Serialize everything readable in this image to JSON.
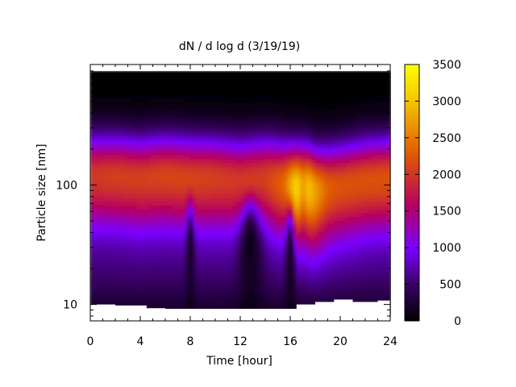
{
  "chart_data": {
    "type": "heatmap",
    "title": "dN / d log d (3/19/19)",
    "xlabel": "Time [hour]",
    "ylabel": "Particle size [nm]",
    "xlim": [
      0,
      24
    ],
    "x_ticks": [
      0,
      4,
      8,
      12,
      16,
      20,
      24
    ],
    "y_scale": "log",
    "ylim": [
      8,
      900
    ],
    "y_ticks": [
      10,
      100
    ],
    "colorbar": {
      "range": [
        0,
        3500
      ],
      "ticks": [
        0,
        500,
        1000,
        1500,
        2000,
        2500,
        3000,
        3500
      ],
      "colors": [
        "#000000",
        "#3a0066",
        "#7a00ff",
        "#b60060",
        "#e05a00",
        "#f5c000",
        "#ffff00"
      ]
    },
    "peak_diameter_nm": [
      [
        0,
        120
      ],
      [
        2,
        120
      ],
      [
        4,
        115
      ],
      [
        6,
        120
      ],
      [
        8,
        115
      ],
      [
        10,
        115
      ],
      [
        12,
        110
      ],
      [
        14,
        115
      ],
      [
        15.5,
        105
      ],
      [
        16.5,
        95
      ],
      [
        17,
        100
      ],
      [
        17.5,
        95
      ],
      [
        18,
        90
      ],
      [
        20,
        100
      ],
      [
        22,
        110
      ],
      [
        24,
        115
      ]
    ],
    "peak_concentration": [
      [
        0,
        2000
      ],
      [
        2,
        2050
      ],
      [
        4,
        2050
      ],
      [
        6,
        2100
      ],
      [
        8,
        2100
      ],
      [
        10,
        2050
      ],
      [
        12,
        2000
      ],
      [
        14,
        2050
      ],
      [
        15.5,
        2350
      ],
      [
        16.5,
        3200
      ],
      [
        17,
        2700
      ],
      [
        17.5,
        3000
      ],
      [
        18,
        2750
      ],
      [
        19,
        2300
      ],
      [
        20,
        2200
      ],
      [
        22,
        2200
      ],
      [
        24,
        2200
      ]
    ],
    "low_size_dips": [
      {
        "time": 8,
        "description": "narrow dip near 8 h"
      },
      {
        "time": 12.5,
        "description": "broad dip 12–14 h"
      },
      {
        "time": 16,
        "description": "dip near 16 h"
      }
    ],
    "min_diameter_cutoff_nm": [
      [
        0,
        10
      ],
      [
        2,
        9.8
      ],
      [
        4.5,
        9.3
      ],
      [
        6,
        9.2
      ],
      [
        10,
        9.2
      ],
      [
        15,
        9.2
      ],
      [
        16.5,
        10
      ],
      [
        17,
        10
      ],
      [
        18,
        10.5
      ],
      [
        19.5,
        11
      ],
      [
        20.5,
        11
      ],
      [
        21,
        10.5
      ],
      [
        22,
        10.5
      ],
      [
        23,
        10.8
      ],
      [
        24,
        10.5
      ]
    ]
  }
}
